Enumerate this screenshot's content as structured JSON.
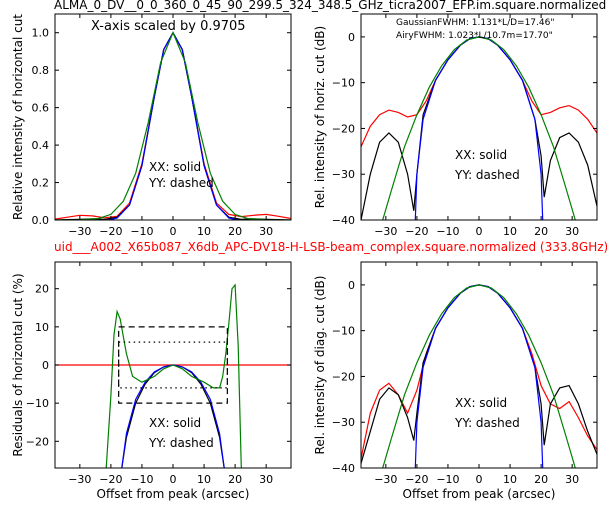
{
  "figure": {
    "top_title": "ALMA_0_DV__0_0_360_0_45_90_299.5_324_348.5_GHz_ticra2007_EFP.im.square.normalized",
    "mid_title": "uid___A002_X65b087_X6db_APC-DV18-H-LSB-beam_complex.square.normalized (333.8GHz)",
    "top_title_color": "#000000",
    "mid_title_color": "#ff0000"
  },
  "chart_data": [
    {
      "id": "top-left",
      "type": "line",
      "ylabel": "Relative intensity of horizontal cut",
      "xlabel": "",
      "xlim": [
        -38,
        38
      ],
      "ylim": [
        0.0,
        1.1
      ],
      "xticks": [
        "−30",
        "−20",
        "−10",
        "0",
        "10",
        "20",
        "30"
      ],
      "yticks": [
        "0.0",
        "0.2",
        "0.4",
        "0.6",
        "0.8",
        "1.0"
      ],
      "annotation_scale": "X-axis scaled by 0.9705",
      "legend_solid": "XX: solid",
      "legend_dashed": "YY: dashed",
      "series": [
        {
          "color": "#ff0000",
          "x": [
            -38,
            -34,
            -30,
            -26,
            -22,
            -18,
            -14,
            -10,
            -6,
            -3,
            0,
            3,
            6,
            10,
            14,
            18,
            22,
            26,
            30,
            34,
            38
          ],
          "values": [
            0.005,
            0.015,
            0.025,
            0.022,
            0.012,
            0.02,
            0.09,
            0.3,
            0.66,
            0.91,
            1.0,
            0.91,
            0.66,
            0.3,
            0.09,
            0.03,
            0.018,
            0.025,
            0.03,
            0.02,
            0.008
          ]
        },
        {
          "color": "#000000",
          "x": [
            -38,
            -34,
            -30,
            -26,
            -22,
            -18,
            -14,
            -10,
            -6,
            -3,
            0,
            3,
            6,
            10,
            14,
            18,
            22,
            26,
            30,
            34,
            38
          ],
          "values": [
            0.0,
            0.002,
            0.004,
            0.006,
            0.003,
            0.015,
            0.08,
            0.29,
            0.66,
            0.91,
            1.0,
            0.91,
            0.66,
            0.29,
            0.08,
            0.015,
            0.003,
            0.006,
            0.004,
            0.002,
            0.0
          ]
        },
        {
          "color": "#0000ff",
          "x": [
            -21,
            -18,
            -14,
            -10,
            -6,
            -3,
            0,
            3,
            6,
            10,
            14,
            18,
            21
          ],
          "values": [
            0.0,
            0.01,
            0.08,
            0.29,
            0.66,
            0.91,
            1.0,
            0.91,
            0.66,
            0.29,
            0.08,
            0.01,
            0.0
          ]
        },
        {
          "color": "#008000",
          "x": [
            -38,
            -30,
            -24,
            -20,
            -16,
            -12,
            -8,
            -4,
            0,
            4,
            8,
            12,
            16,
            20,
            24,
            30,
            38
          ],
          "values": [
            0.0,
            0.001,
            0.008,
            0.03,
            0.1,
            0.25,
            0.52,
            0.84,
            1.0,
            0.84,
            0.52,
            0.25,
            0.1,
            0.03,
            0.008,
            0.001,
            0.0
          ]
        }
      ]
    },
    {
      "id": "top-right",
      "type": "line",
      "ylabel": "Rel. intensity of horiz. cut (dB)",
      "xlabel": "",
      "xlim": [
        -38,
        38
      ],
      "ylim": [
        -40,
        5
      ],
      "xticks": [
        "−30",
        "−20",
        "−10",
        "0",
        "10",
        "20",
        "30"
      ],
      "yticks": [
        "−40",
        "−30",
        "−20",
        "−10",
        "0"
      ],
      "legend_gaussian": "GaussianFWHM: 1.131*L/D=17.46\"",
      "legend_airy": "AiryFWHM: 1.023*L/10.7m=17.70\"",
      "gaussian_color": "#008000",
      "airy_color": "#0000ff",
      "legend_solid": "XX: solid",
      "legend_dashed": "YY: dashed",
      "series": [
        {
          "color": "#ff0000",
          "x": [
            -38,
            -35,
            -32,
            -29,
            -26,
            -23,
            -20,
            -17,
            -14,
            -10,
            -6,
            -3,
            0,
            3,
            6,
            10,
            14,
            17,
            20,
            23,
            26,
            29,
            32,
            35,
            38
          ],
          "values": [
            -24,
            -19.5,
            -17,
            -16,
            -16.5,
            -17.5,
            -17,
            -14,
            -9.5,
            -5,
            -1.8,
            -0.4,
            0,
            -0.4,
            -1.8,
            -5,
            -9.5,
            -14,
            -17,
            -16.5,
            -15.5,
            -15,
            -16,
            -18,
            -21
          ]
        },
        {
          "color": "#000000",
          "x": [
            -38,
            -35,
            -32,
            -29,
            -26,
            -23,
            -21,
            -20,
            -18,
            -14,
            -10,
            -6,
            -3,
            0,
            3,
            6,
            10,
            14,
            18,
            20,
            21,
            23,
            26,
            29,
            32,
            35,
            38
          ],
          "values": [
            -40,
            -30,
            -23,
            -21,
            -23,
            -30,
            -38,
            -30,
            -17,
            -9.5,
            -5,
            -1.8,
            -0.4,
            0,
            -0.4,
            -1.8,
            -5,
            -9.5,
            -18,
            -26,
            -35,
            -27,
            -22,
            -21,
            -23,
            -28,
            -37
          ]
        },
        {
          "color": "#0000ff",
          "x": [
            -20.5,
            -20,
            -18,
            -14,
            -10,
            -6,
            -3,
            0,
            3,
            6,
            10,
            14,
            18,
            20,
            20.5
          ],
          "values": [
            -40,
            -30,
            -18,
            -9.5,
            -5,
            -1.8,
            -0.4,
            0,
            -0.4,
            -1.8,
            -5,
            -9.5,
            -18,
            -30,
            -40
          ]
        },
        {
          "color": "#008000",
          "x": [
            -31,
            -28,
            -24,
            -20,
            -16,
            -12,
            -8,
            -4,
            0,
            4,
            8,
            12,
            16,
            20,
            24,
            28,
            31
          ],
          "values": [
            -40,
            -33,
            -24,
            -17,
            -11,
            -6.3,
            -2.8,
            -0.7,
            0,
            -0.7,
            -2.8,
            -6.3,
            -11,
            -17,
            -24,
            -33,
            -40
          ]
        }
      ]
    },
    {
      "id": "bottom-left",
      "type": "line",
      "ylabel": "Residuals of horizontal cut (%)",
      "xlabel": "Offset from peak (arcsec)",
      "xlim": [
        -38,
        38
      ],
      "ylim": [
        -27,
        27
      ],
      "xticks": [
        "−30",
        "−20",
        "−10",
        "0",
        "10",
        "20",
        "30"
      ],
      "yticks": [
        "−20",
        "−10",
        "0",
        "10",
        "20"
      ],
      "legend_solid": "XX: solid",
      "legend_dashed": "YY: dashed",
      "box_outer": {
        "x": [
          -17.5,
          17.5
        ],
        "y": [
          -10,
          10
        ]
      },
      "box_inner": {
        "x": [
          -17.5,
          17.5
        ],
        "y": [
          -6,
          6
        ]
      },
      "series": [
        {
          "color": "#ff0000",
          "x": [
            -38,
            38
          ],
          "values": [
            0,
            0
          ]
        },
        {
          "color": "#000000",
          "x": [
            -16.5,
            -15,
            -12,
            -9,
            -6,
            -3,
            0,
            3,
            6,
            9,
            12,
            15,
            16.5
          ],
          "values": [
            -27,
            -19,
            -10,
            -5,
            -2,
            -0.5,
            0,
            -0.5,
            -2,
            -5,
            -10,
            -19,
            -27
          ]
        },
        {
          "color": "#0000ff",
          "x": [
            -16.5,
            -15,
            -12,
            -9,
            -6,
            -3,
            0,
            3,
            6,
            9,
            12,
            15,
            16.5
          ],
          "values": [
            -27,
            -18,
            -9,
            -4.5,
            -1.8,
            -0.5,
            0,
            -0.5,
            -1.8,
            -4.5,
            -9,
            -18,
            -27
          ]
        },
        {
          "color": "#008000",
          "x": [
            -21.5,
            -20,
            -19,
            -18,
            -17,
            -15,
            -13,
            -10,
            -6,
            -3,
            0,
            3,
            6,
            10,
            13,
            15,
            16,
            17,
            18,
            19,
            20,
            21,
            22
          ],
          "values": [
            -27,
            -8,
            8,
            14,
            12,
            3,
            -3,
            -4.5,
            -3,
            -1,
            0,
            -1,
            -3,
            -4.5,
            -6,
            -6,
            -3,
            3,
            11,
            20,
            21,
            5,
            -27
          ]
        }
      ]
    },
    {
      "id": "bottom-right",
      "type": "line",
      "ylabel": "Rel. intensity of diag. cut (dB)",
      "xlabel": "Offset from peak (arcsec)",
      "xlim": [
        -38,
        38
      ],
      "ylim": [
        -40,
        5
      ],
      "xticks": [
        "−30",
        "−20",
        "−10",
        "0",
        "10",
        "20",
        "30"
      ],
      "yticks": [
        "−40",
        "−30",
        "−20",
        "−10",
        "0"
      ],
      "legend_solid": "XX: solid",
      "legend_dashed": "YY: dashed",
      "series": [
        {
          "color": "#ff0000",
          "x": [
            -38,
            -35,
            -32,
            -29,
            -26,
            -23,
            -20,
            -17,
            -14,
            -10,
            -6,
            -3,
            0,
            3,
            6,
            10,
            14,
            17,
            20,
            23,
            26,
            29,
            32,
            35,
            38
          ],
          "values": [
            -38,
            -28,
            -23,
            -21.5,
            -24,
            -28,
            -23,
            -15,
            -9.5,
            -5,
            -1.8,
            -0.4,
            0,
            -0.4,
            -1.8,
            -5,
            -9.5,
            -15,
            -22,
            -26,
            -27,
            -25.5,
            -29,
            -33,
            -36
          ]
        },
        {
          "color": "#000000",
          "x": [
            -38,
            -35,
            -32,
            -29,
            -26,
            -23,
            -21,
            -20,
            -18,
            -14,
            -10,
            -6,
            -3,
            0,
            3,
            6,
            10,
            14,
            18,
            20,
            21,
            23,
            26,
            29,
            32,
            35,
            38
          ],
          "values": [
            -39,
            -32,
            -25,
            -22.5,
            -24,
            -29,
            -34,
            -28,
            -17,
            -9.5,
            -5,
            -1.8,
            -0.4,
            0,
            -0.4,
            -1.8,
            -5,
            -9.5,
            -18,
            -26,
            -35,
            -26,
            -22.5,
            -22,
            -26,
            -32,
            -37
          ]
        },
        {
          "color": "#0000ff",
          "x": [
            -20.5,
            -20,
            -18,
            -14,
            -10,
            -6,
            -3,
            0,
            3,
            6,
            10,
            14,
            18,
            20,
            20.5
          ],
          "values": [
            -40,
            -30,
            -18,
            -9.5,
            -5,
            -1.8,
            -0.4,
            0,
            -0.4,
            -1.8,
            -5,
            -9.5,
            -18,
            -30,
            -40
          ]
        },
        {
          "color": "#008000",
          "x": [
            -31,
            -28,
            -24,
            -20,
            -16,
            -12,
            -8,
            -4,
            0,
            4,
            8,
            12,
            16,
            20,
            24,
            28,
            31
          ],
          "values": [
            -40,
            -33,
            -24,
            -17,
            -11,
            -6.3,
            -2.8,
            -0.7,
            0,
            -0.7,
            -2.8,
            -6.3,
            -11,
            -17,
            -24,
            -33,
            -40
          ]
        }
      ]
    }
  ]
}
